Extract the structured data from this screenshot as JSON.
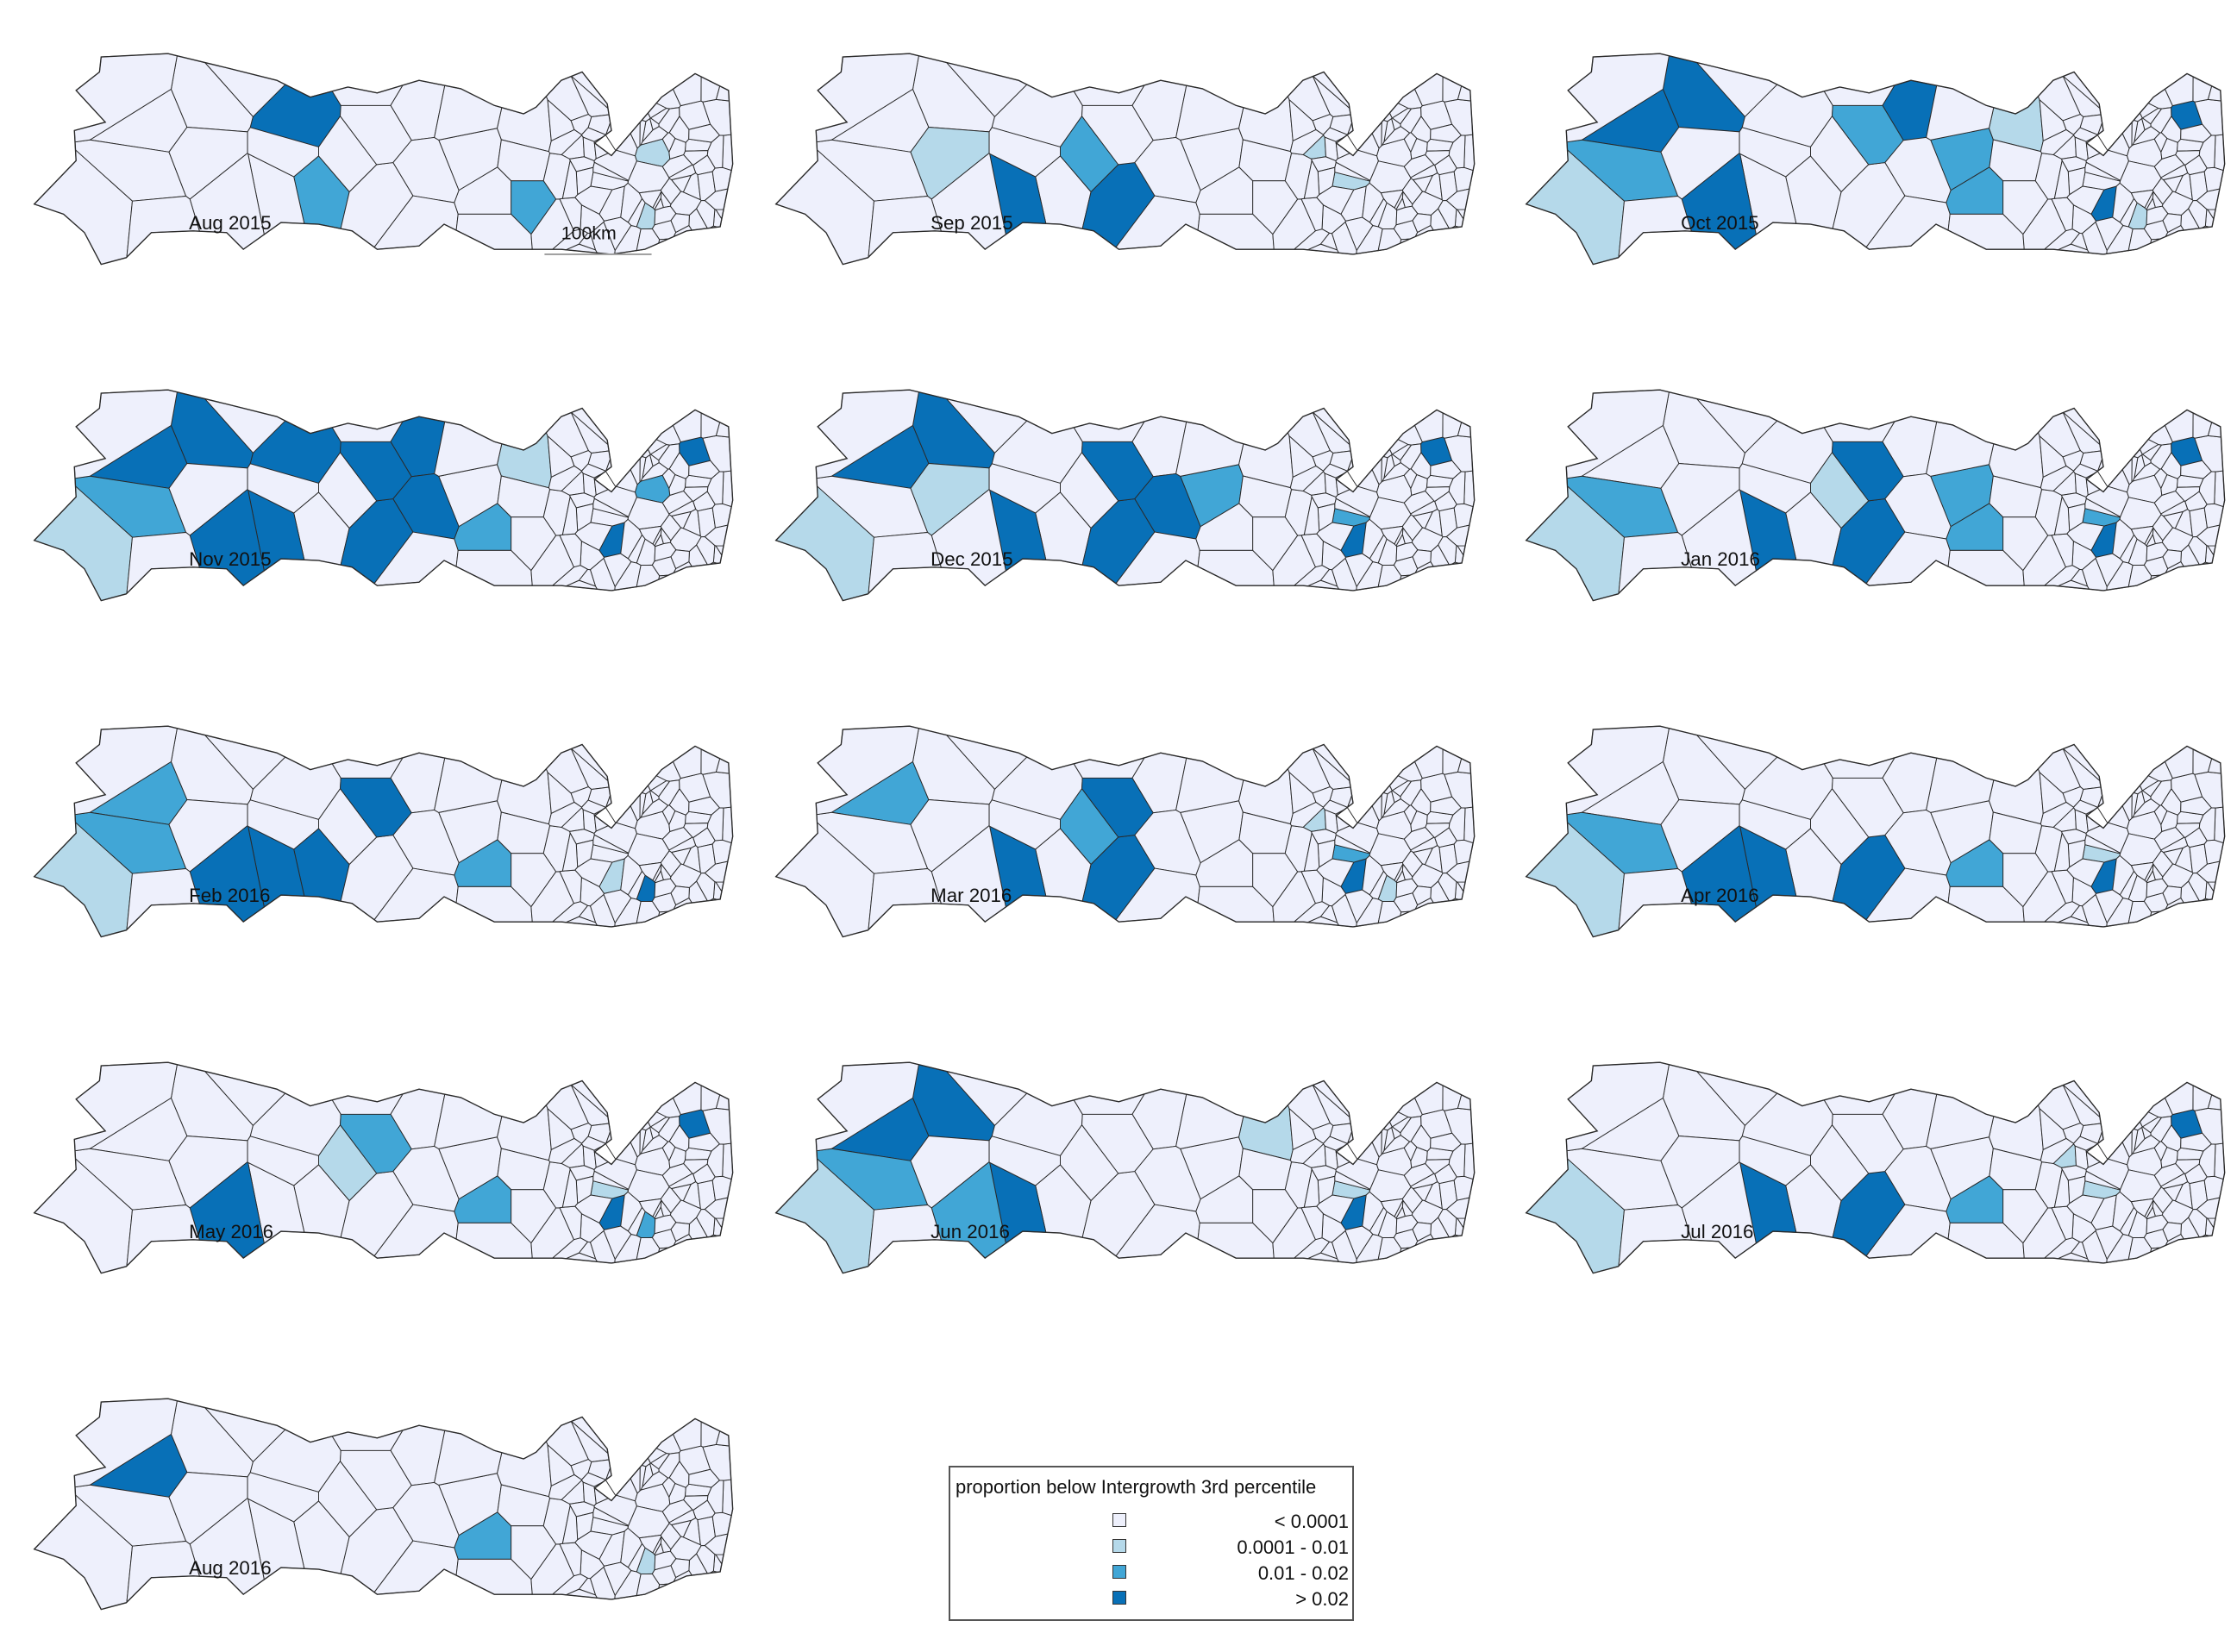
{
  "colors": {
    "lt_0_0001": "#eef0fc",
    "0_0001_0_01": "#b5d9ea",
    "0_01_0_02": "#41a6d6",
    "gt_0_02": "#0870b7",
    "border": "#2a2a2a"
  },
  "scale_bar": {
    "label": "100km"
  },
  "maps": [
    {
      "label": "Aug 2015",
      "dark": [
        5
      ],
      "mid": [
        6,
        11
      ],
      "light": [
        20,
        22
      ]
    },
    {
      "label": "Sep 2015",
      "dark": [
        7,
        13
      ],
      "mid": [
        14
      ],
      "light": [
        4,
        18,
        21
      ]
    },
    {
      "label": "Oct 2015",
      "dark": [
        1,
        3,
        8,
        17,
        19,
        23
      ],
      "mid": [
        2,
        9,
        12,
        15
      ],
      "light": [
        0,
        10,
        22
      ]
    },
    {
      "label": "Nov 2015",
      "dark": [
        1,
        3,
        5,
        7,
        8,
        13,
        15,
        16,
        17,
        19,
        23
      ],
      "mid": [
        2,
        12,
        20
      ],
      "light": [
        0,
        10
      ]
    },
    {
      "label": "Dec 2015",
      "dark": [
        1,
        3,
        7,
        13,
        15,
        16,
        19,
        23
      ],
      "mid": [
        9,
        21
      ],
      "light": [
        0,
        4
      ]
    },
    {
      "label": "Jan 2016",
      "dark": [
        7,
        13,
        15,
        19,
        23
      ],
      "mid": [
        2,
        9,
        12,
        21
      ],
      "light": [
        0,
        14
      ]
    },
    {
      "label": "Feb 2016",
      "dark": [
        6,
        13,
        15,
        17,
        22
      ],
      "mid": [
        1,
        2,
        12
      ],
      "light": [
        0,
        19
      ]
    },
    {
      "label": "Mar 2016",
      "dark": [
        7,
        13,
        15,
        19
      ],
      "mid": [
        1,
        14,
        21
      ],
      "light": [
        18,
        22
      ]
    },
    {
      "label": "Apr 2016",
      "dark": [
        7,
        13,
        17,
        19
      ],
      "mid": [
        2,
        12
      ],
      "light": [
        0,
        21
      ]
    },
    {
      "label": "May 2016",
      "dark": [
        17,
        19,
        23
      ],
      "mid": [
        12,
        15,
        22
      ],
      "light": [
        14,
        21
      ]
    },
    {
      "label": "Jun 2016",
      "dark": [
        1,
        3,
        13,
        19
      ],
      "mid": [
        2,
        17
      ],
      "light": [
        0,
        10,
        21
      ]
    },
    {
      "label": "Jul 2016",
      "dark": [
        7,
        13,
        23
      ],
      "mid": [
        12
      ],
      "light": [
        0,
        18,
        21
      ]
    },
    {
      "label": "Aug 2016",
      "dark": [
        1
      ],
      "mid": [
        12
      ],
      "light": [
        22
      ]
    }
  ],
  "legend": {
    "title": "proportion below Intergrowth 3rd percentile",
    "items": [
      {
        "label": "< 0.0001",
        "color_key": "lt_0_0001"
      },
      {
        "label": "0.0001 - 0.01",
        "color_key": "0_0001_0_01"
      },
      {
        "label": "0.01 - 0.02",
        "color_key": "0_01_0_02"
      },
      {
        "label": "> 0.02",
        "color_key": "gt_0_02"
      }
    ]
  }
}
